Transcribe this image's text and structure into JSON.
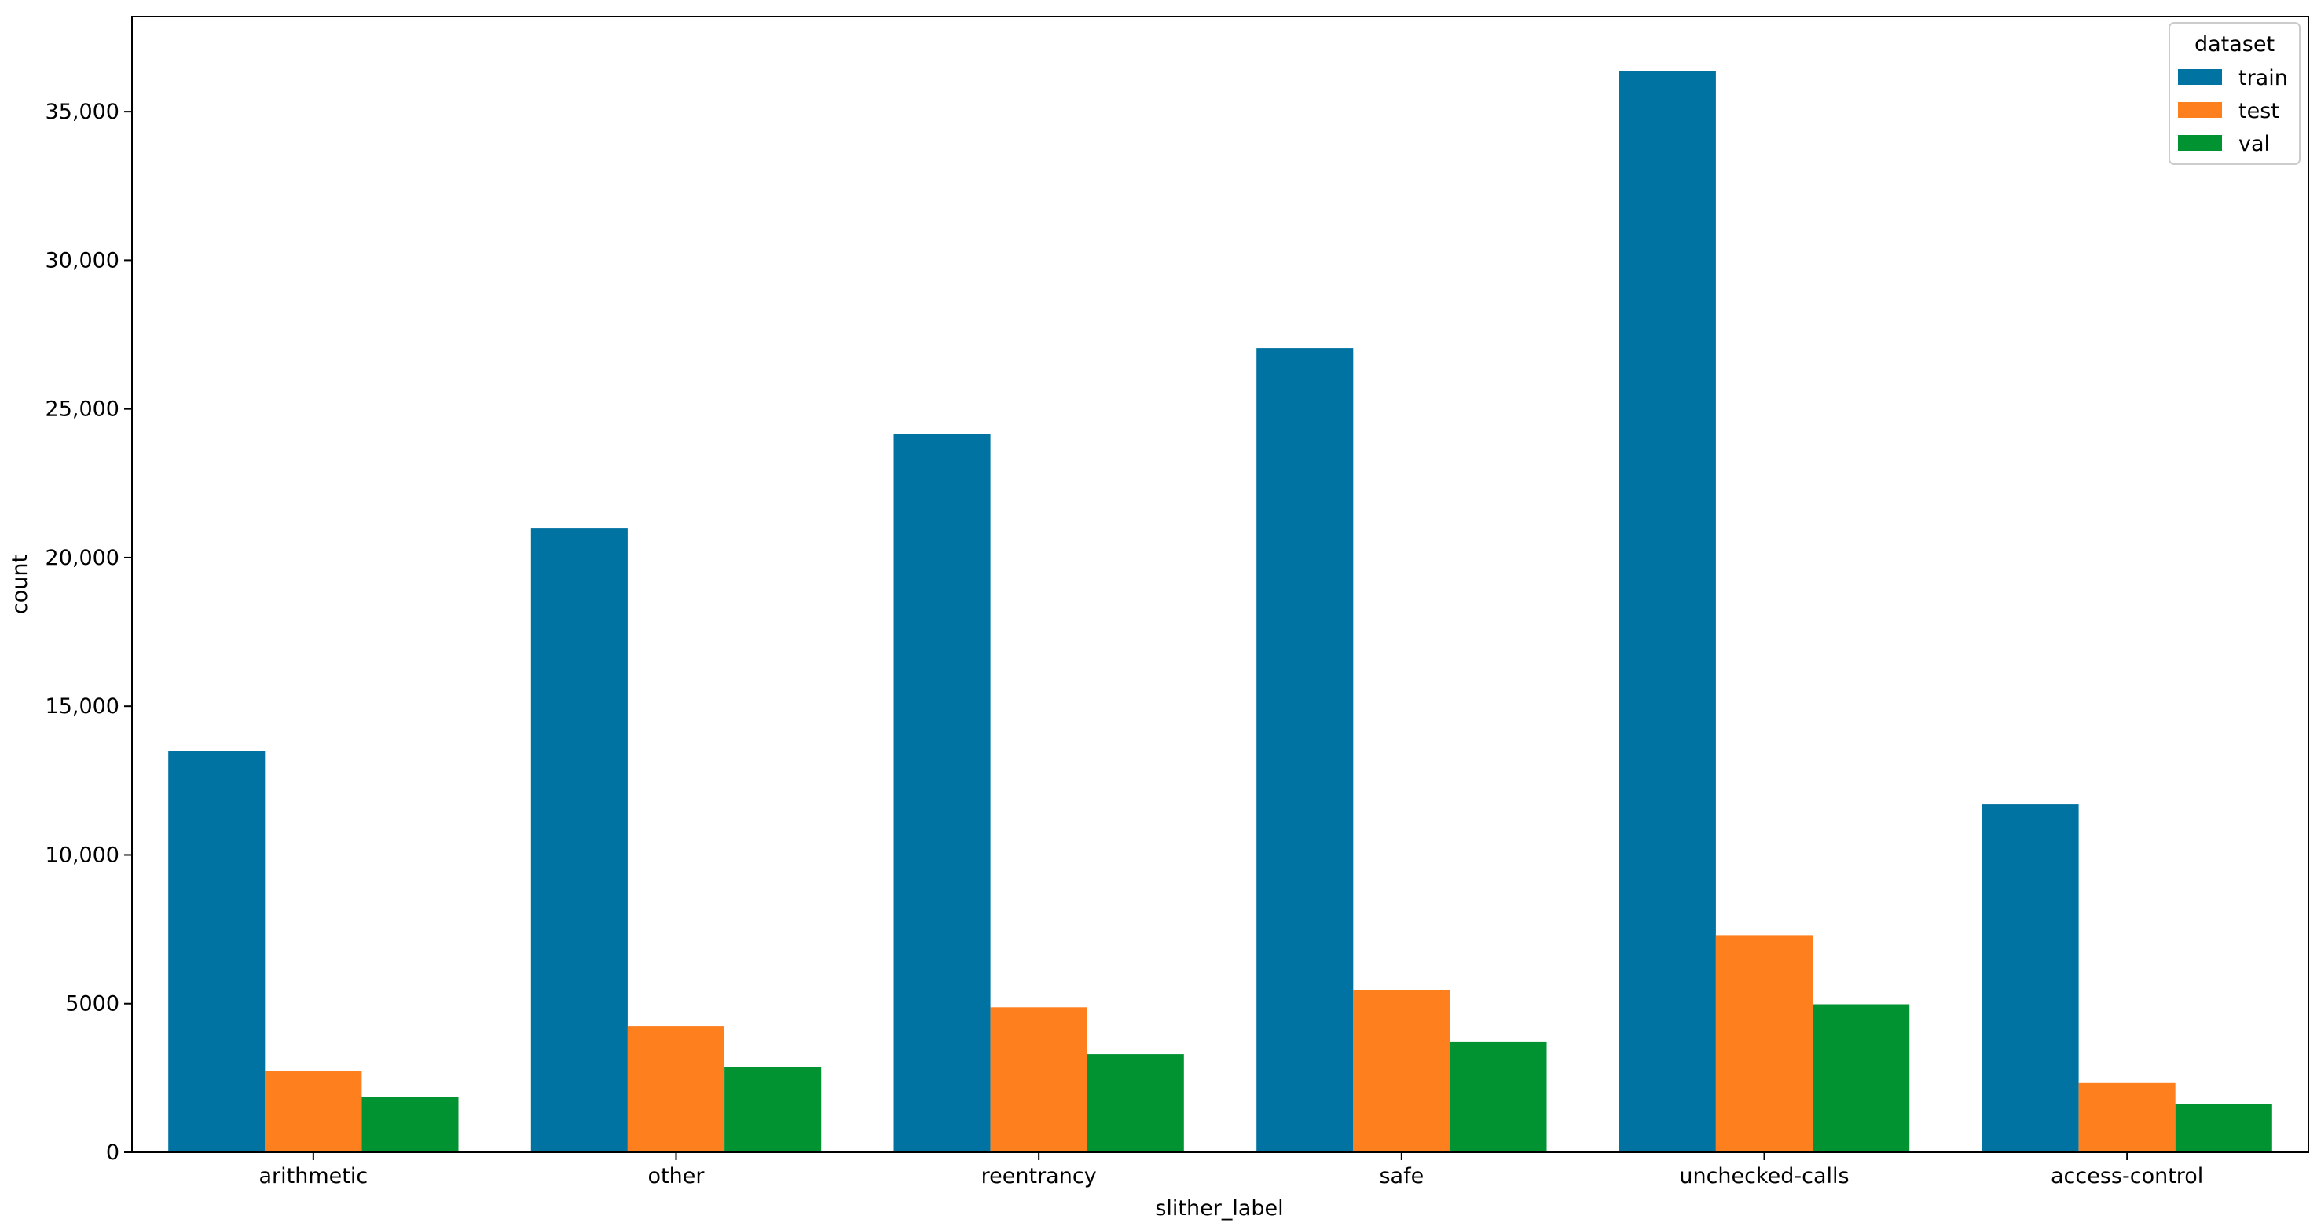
{
  "chart_data": {
    "type": "bar",
    "categories": [
      "arithmetic",
      "other",
      "reentrancy",
      "safe",
      "unchecked-calls",
      "access-control"
    ],
    "series": [
      {
        "name": "train",
        "color": "#0173a2",
        "values": [
          13500,
          21000,
          24150,
          27050,
          36350,
          11700
        ]
      },
      {
        "name": "test",
        "color": "#fe7f1e",
        "values": [
          2720,
          4250,
          4880,
          5450,
          7280,
          2330
        ]
      },
      {
        "name": "val",
        "color": "#019232",
        "values": [
          1850,
          2870,
          3300,
          3700,
          4980,
          1620
        ]
      }
    ],
    "xlabel": "slither_label",
    "ylabel": "count",
    "ylim": [
      0,
      38200
    ],
    "yticks": [
      0,
      5000,
      10000,
      15000,
      20000,
      25000,
      30000,
      35000
    ],
    "ytick_labels": [
      "0",
      "5000",
      "10,000",
      "15,000",
      "20,000",
      "25,000",
      "30,000",
      "35,000"
    ],
    "legend": {
      "title": "dataset",
      "placement": "top-right"
    },
    "grid": false
  }
}
